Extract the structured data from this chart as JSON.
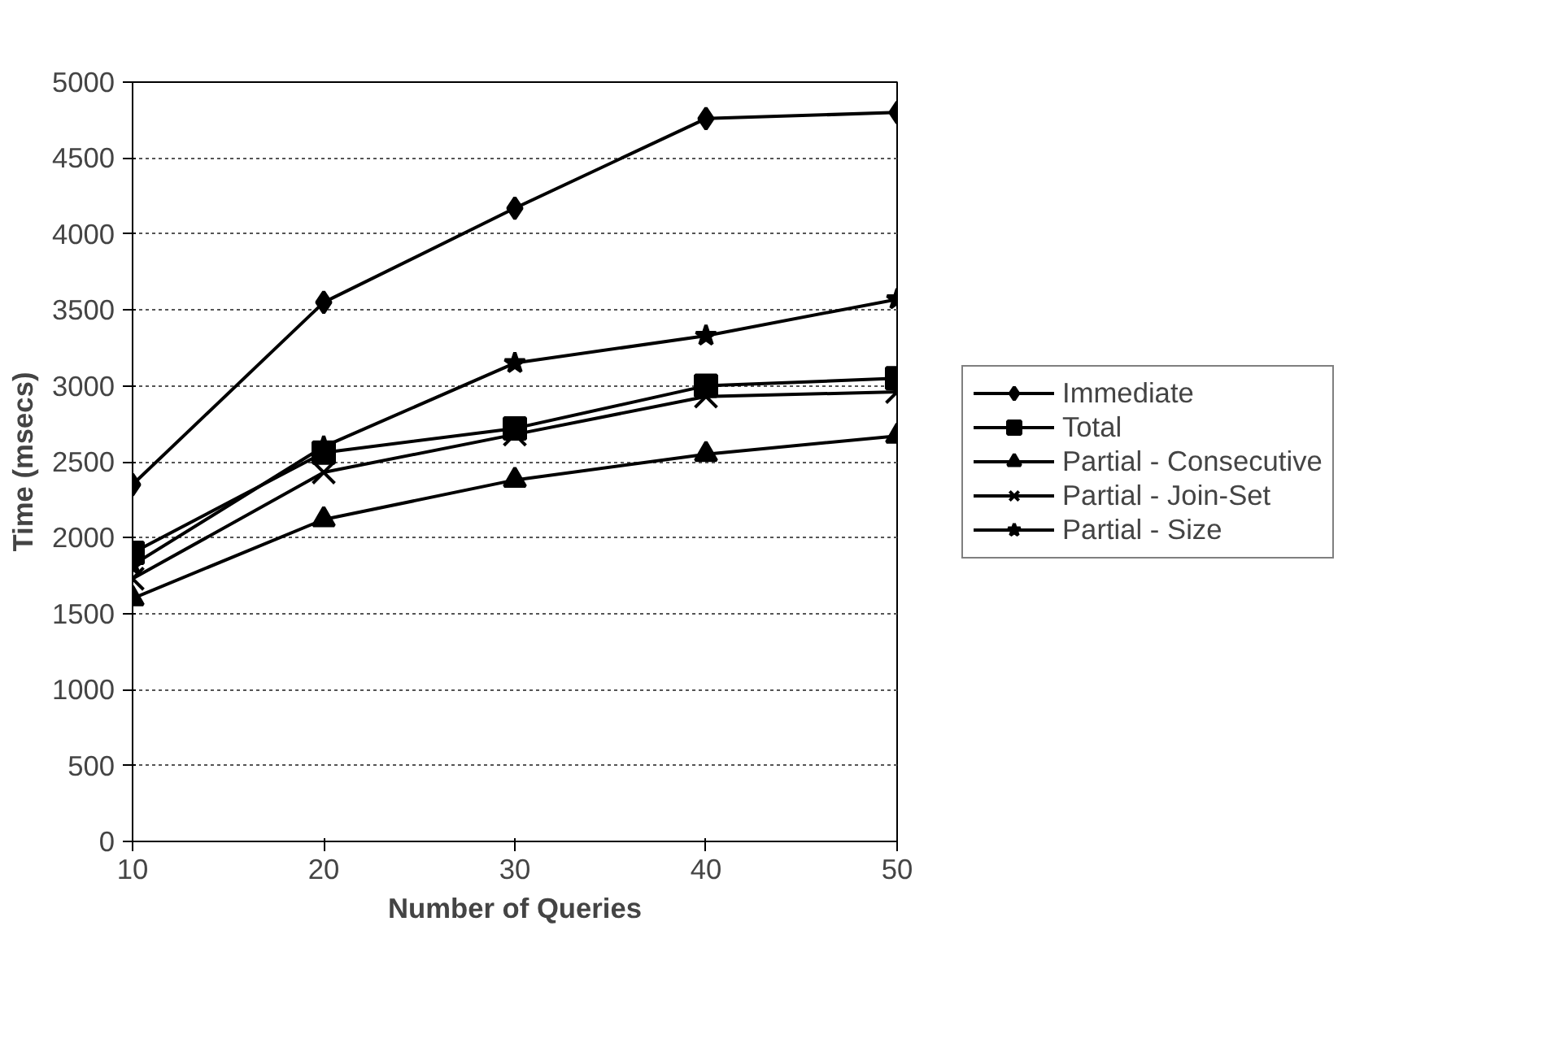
{
  "chart_data": {
    "type": "line",
    "xlabel": "Number of Queries",
    "ylabel": "Time (msecs)",
    "categories": [
      "10",
      "20",
      "30",
      "40",
      "50"
    ],
    "ylim": [
      0,
      5000
    ],
    "yticks": [
      0,
      500,
      1000,
      1500,
      2000,
      2500,
      3000,
      3500,
      4000,
      4500,
      5000
    ],
    "grid": "y",
    "legend": "right",
    "line_style": "solid",
    "series": [
      {
        "name": "Immediate",
        "color": "#000000",
        "marker": "diamond",
        "values": [
          2350,
          3550,
          4170,
          4760,
          4800
        ]
      },
      {
        "name": "Total",
        "color": "#000000",
        "marker": "square",
        "values": [
          1900,
          2560,
          2720,
          3000,
          3050
        ]
      },
      {
        "name": "Partial - Consecutive",
        "color": "#000000",
        "marker": "triangle",
        "values": [
          1600,
          2120,
          2380,
          2550,
          2670
        ]
      },
      {
        "name": "Partial - Join-Set",
        "color": "#000000",
        "marker": "cross",
        "values": [
          1730,
          2430,
          2680,
          2930,
          2960
        ]
      },
      {
        "name": "Partial - Size",
        "color": "#000000",
        "marker": "star",
        "values": [
          1820,
          2600,
          3150,
          3330,
          3570
        ]
      }
    ]
  }
}
